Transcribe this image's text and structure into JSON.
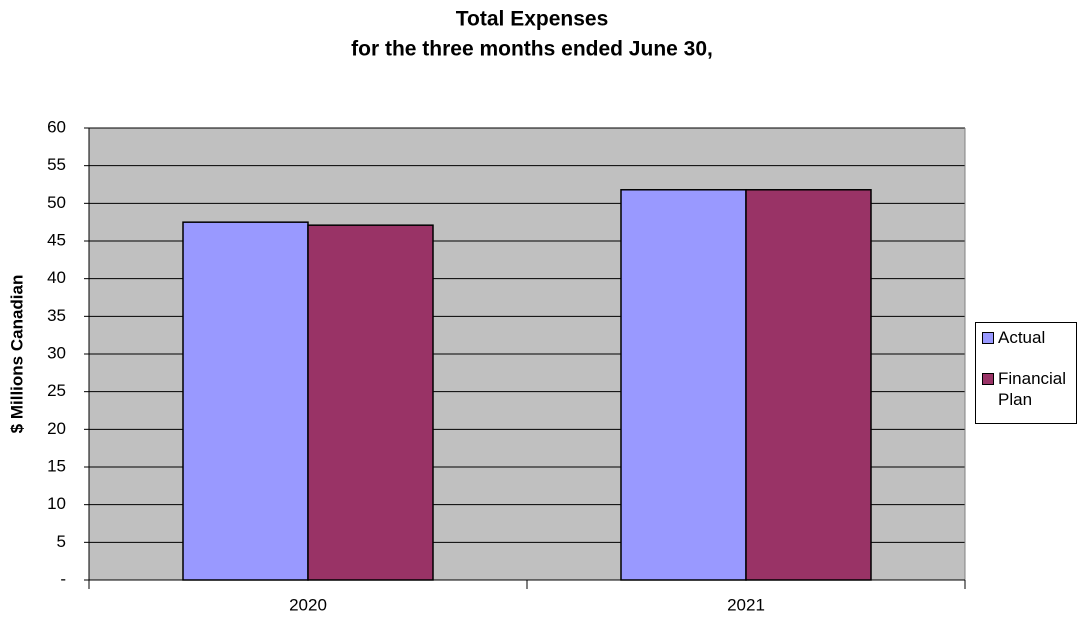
{
  "chart_data": {
    "type": "bar",
    "title": [
      "Total Expenses",
      "for the three months ended June 30,"
    ],
    "y_label": "$ Millions Canadian",
    "categories": [
      "2020",
      "2021"
    ],
    "series": [
      {
        "name": "Actual",
        "color": "#9999ff",
        "values": [
          47.5,
          51.8
        ]
      },
      {
        "name": "Financial Plan",
        "color": "#993366",
        "values": [
          47.1,
          51.8
        ]
      }
    ],
    "ylim": [
      0,
      60
    ],
    "yticks": [
      {
        "value": 0,
        "label": "-"
      },
      5,
      10,
      15,
      20,
      25,
      30,
      35,
      40,
      45,
      50,
      55,
      60
    ],
    "grid": true,
    "legend": "right"
  }
}
